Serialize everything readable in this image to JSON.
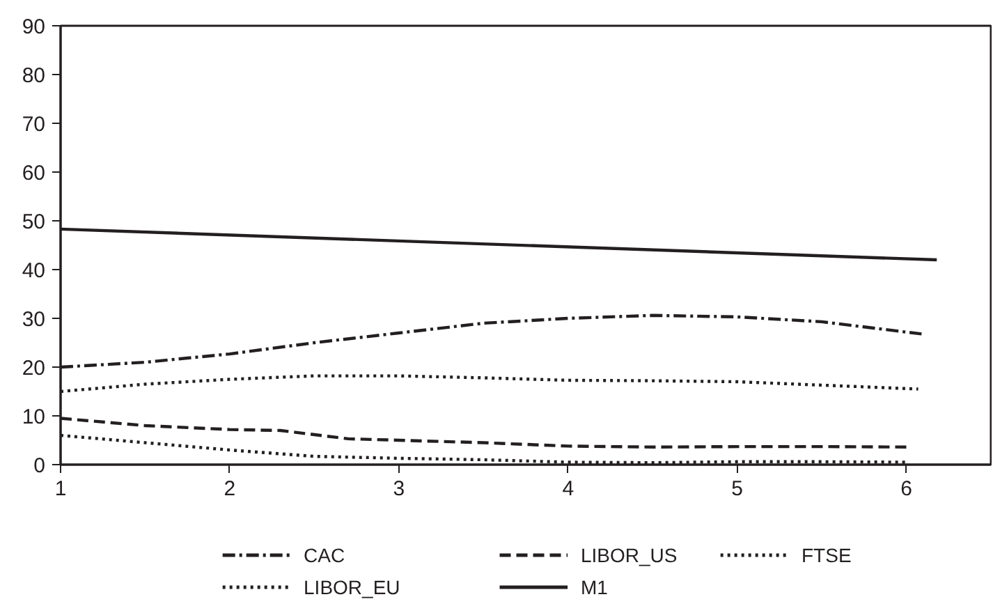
{
  "chart_data": {
    "type": "line",
    "xlim": [
      1,
      6.5
    ],
    "ylim": [
      0,
      90
    ],
    "xticks": [
      1,
      2,
      3,
      4,
      5,
      6
    ],
    "yticks": [
      0,
      10,
      20,
      30,
      40,
      50,
      60,
      70,
      80,
      90
    ],
    "grid": false,
    "legend": "bottom",
    "marker": "none",
    "series": [
      {
        "name": "CAC",
        "color": "#231f20",
        "line_style": "dashdot",
        "x": [
          1,
          1.5,
          2,
          2.5,
          3,
          3.5,
          4,
          4.5,
          5,
          5.5,
          6.09
        ],
        "values": [
          20,
          21,
          22.7,
          25,
          27,
          29,
          30,
          30.6,
          30.3,
          29.3,
          26.8
        ]
      },
      {
        "name": "LIBOR_EU",
        "color": "#231f20",
        "line_style": "dotted",
        "x": [
          1,
          1.5,
          2,
          2.5,
          3,
          3.5,
          4,
          4.5,
          5,
          5.5,
          6.07
        ],
        "values": [
          15,
          16.5,
          17.5,
          18.2,
          18.2,
          17.8,
          17.3,
          17.2,
          17,
          16.3,
          15.5
        ]
      },
      {
        "name": "LIBOR_US",
        "color": "#231f20",
        "line_style": "dashed",
        "x": [
          1,
          1.5,
          2,
          2.3,
          2.7,
          3,
          3.5,
          4,
          4.5,
          5,
          5.5,
          6.03
        ],
        "values": [
          9.5,
          8,
          7.2,
          7,
          5.3,
          5,
          4.5,
          3.8,
          3.6,
          3.7,
          3.7,
          3.6
        ]
      },
      {
        "name": "M1",
        "color": "#231f20",
        "line_style": "solid",
        "x": [
          1,
          6.18
        ],
        "values": [
          48.3,
          42
        ]
      },
      {
        "name": "FTSE",
        "color": "#231f20",
        "line_style": "dotted",
        "x": [
          1,
          1.5,
          2,
          2.5,
          3,
          3.5,
          4,
          4.5,
          5,
          5.5,
          6
        ],
        "values": [
          6,
          4.5,
          3,
          1.7,
          1.3,
          1,
          0.5,
          0.4,
          0.6,
          0.6,
          0.5
        ]
      }
    ]
  }
}
